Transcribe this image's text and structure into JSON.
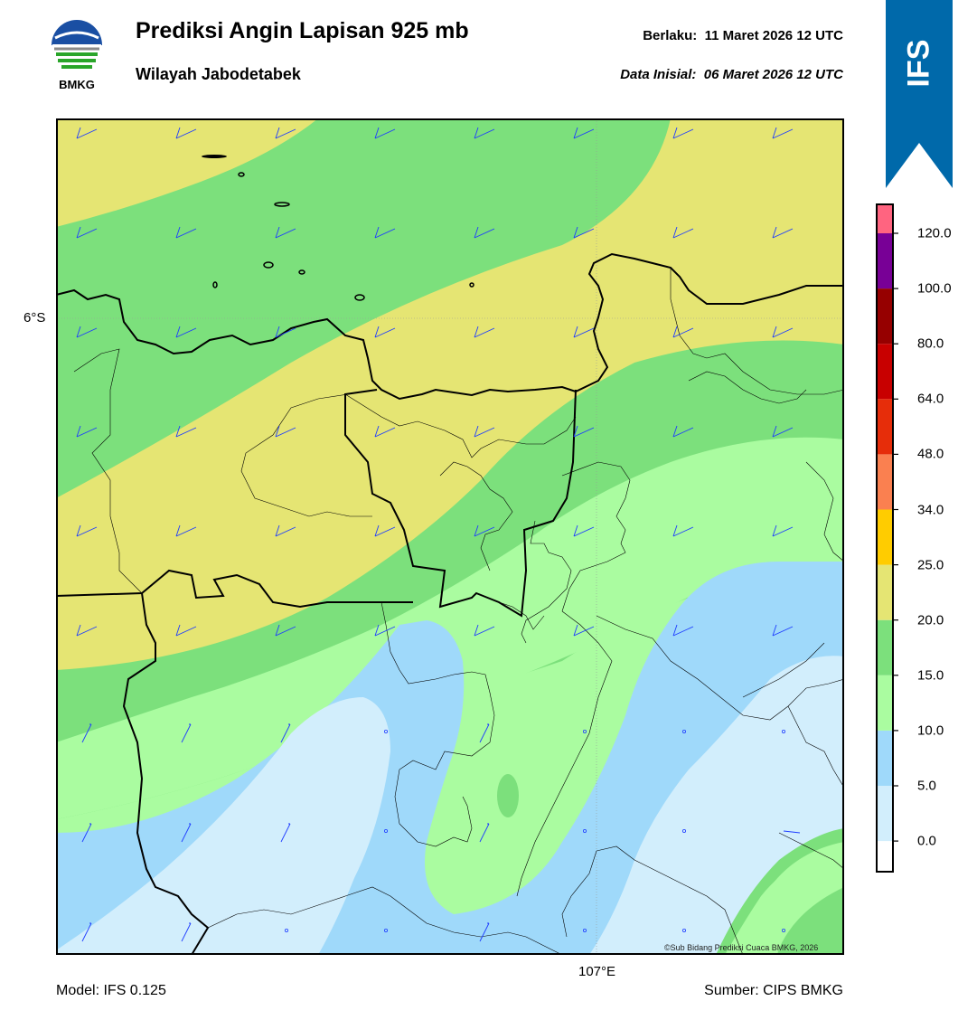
{
  "header": {
    "title": "Prediksi Angin Lapisan 925 mb",
    "subtitle": "Wilayah Jabodetabek",
    "valid_label": "Berlaku:",
    "valid_time": "11 Maret 2026 12 UTC",
    "init_label": "Data Inisial:",
    "init_time": "06 Maret 2026 12 UTC"
  },
  "logo": {
    "icon": "bmkg-logo-icon",
    "text": "BMKG"
  },
  "badge": {
    "text": "IFS",
    "color": "#0069aa"
  },
  "map": {
    "lat_label": "6°S",
    "lon_label": "107°E",
    "copyright": "©Sub Bidang Prediksi Cuaca BMKG, 2026"
  },
  "colorbar": {
    "labels": [
      "120.0",
      "100.0",
      "80.0",
      "64.0",
      "48.0",
      "34.0",
      "25.0",
      "20.0",
      "15.0",
      "10.0",
      "5.0",
      "0.0"
    ],
    "colors": [
      "#ffffff",
      "#d2eefc",
      "#9fd9fa",
      "#aafca0",
      "#7ce07c",
      "#e5e573",
      "#ffcc00",
      "#fa8050",
      "#e62d0a",
      "#c80000",
      "#960000",
      "#780096",
      "#ff6480"
    ]
  },
  "footer": {
    "model": "Model: IFS 0.125",
    "source": "Sumber: CIPS BMKG"
  }
}
